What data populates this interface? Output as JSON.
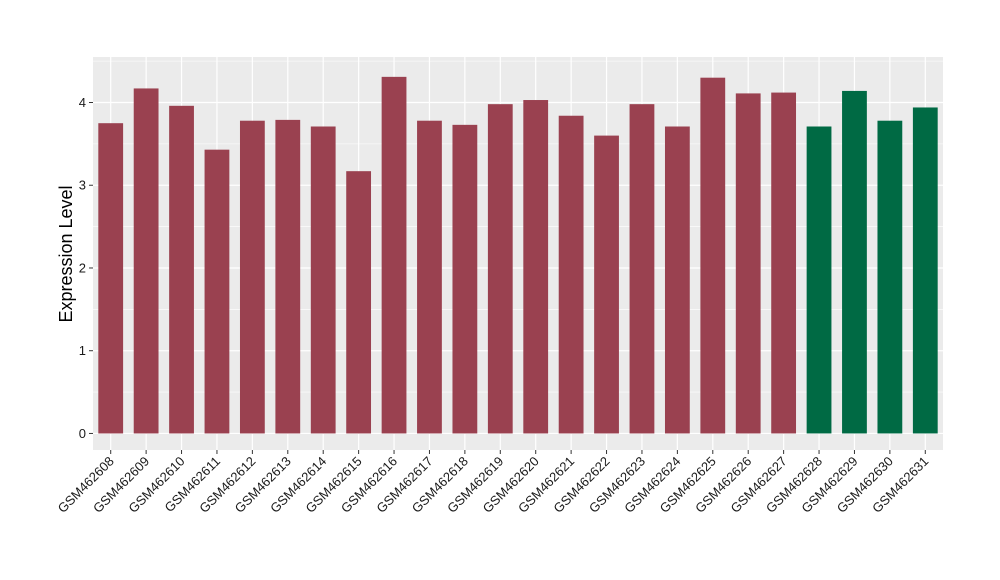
{
  "chart_data": {
    "type": "bar",
    "title": "",
    "xlabel": "",
    "ylabel": "Expression Level",
    "ylim": [
      -0.2,
      4.55
    ],
    "yticks": [
      0,
      1,
      2,
      3,
      4
    ],
    "grid": true,
    "legend": "none",
    "colors": {
      "panel_bg": "#EBEBEB",
      "grid_major": "#FFFFFF",
      "series_a": "#9A4150",
      "series_b": "#006A44"
    },
    "categories": [
      "GSM462608",
      "GSM462609",
      "GSM462610",
      "GSM462611",
      "GSM462612",
      "GSM462613",
      "GSM462614",
      "GSM462615",
      "GSM462616",
      "GSM462617",
      "GSM462618",
      "GSM462619",
      "GSM462620",
      "GSM462621",
      "GSM462622",
      "GSM462623",
      "GSM462624",
      "GSM462625",
      "GSM462626",
      "GSM462627",
      "GSM462628",
      "GSM462629",
      "GSM462630",
      "GSM462631"
    ],
    "values": [
      3.75,
      4.17,
      3.96,
      3.43,
      3.78,
      3.79,
      3.71,
      3.17,
      4.31,
      3.78,
      3.73,
      3.98,
      4.03,
      3.84,
      3.6,
      3.98,
      3.71,
      4.3,
      4.11,
      4.12,
      3.71,
      4.14,
      3.78,
      3.94
    ],
    "bar_groups": [
      "a",
      "a",
      "a",
      "a",
      "a",
      "a",
      "a",
      "a",
      "a",
      "a",
      "a",
      "a",
      "a",
      "a",
      "a",
      "a",
      "a",
      "a",
      "a",
      "a",
      "b",
      "b",
      "b",
      "b"
    ]
  }
}
